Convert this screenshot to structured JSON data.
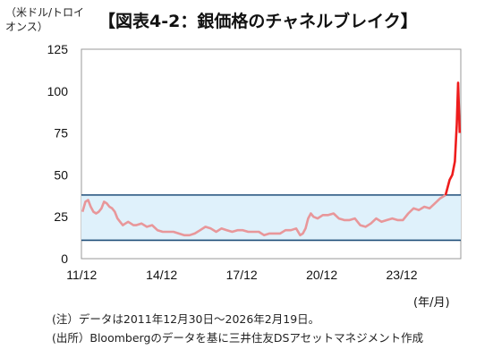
{
  "chart_data": {
    "type": "line",
    "title": "【図表4-2：銀価格のチャネルブレイク】",
    "ylabel": "（米ドル/トロイ\nオンス）",
    "xlabel": "(年/月)",
    "ylim": [
      0,
      125
    ],
    "y_ticks": [
      "0",
      "25",
      "50",
      "75",
      "100",
      "125"
    ],
    "x_ticks": [
      "11/12",
      "14/12",
      "17/12",
      "20/12",
      "23/12"
    ],
    "grid": false,
    "channel": {
      "lower": 11,
      "upper": 38
    },
    "series": [
      {
        "color_before": "#e8979a",
        "color_after": "#ee1c1c",
        "x": [
          2011.99,
          2012.1,
          2012.2,
          2012.3,
          2012.4,
          2012.5,
          2012.6,
          2012.7,
          2012.8,
          2012.9,
          2013.0,
          2013.1,
          2013.2,
          2013.3,
          2013.4,
          2013.5,
          2013.6,
          2013.7,
          2013.8,
          2013.9,
          2014.0,
          2014.2,
          2014.4,
          2014.6,
          2014.8,
          2015.0,
          2015.2,
          2015.4,
          2015.6,
          2015.8,
          2016.0,
          2016.2,
          2016.4,
          2016.6,
          2016.8,
          2017.0,
          2017.2,
          2017.4,
          2017.6,
          2017.8,
          2018.0,
          2018.2,
          2018.4,
          2018.6,
          2018.8,
          2019.0,
          2019.2,
          2019.4,
          2019.6,
          2019.8,
          2020.0,
          2020.15,
          2020.25,
          2020.35,
          2020.45,
          2020.55,
          2020.65,
          2020.8,
          2021.0,
          2021.2,
          2021.4,
          2021.6,
          2021.8,
          2022.0,
          2022.2,
          2022.4,
          2022.6,
          2022.8,
          2023.0,
          2023.2,
          2023.4,
          2023.6,
          2023.8,
          2024.0,
          2024.2,
          2024.4,
          2024.6,
          2024.8,
          2025.0,
          2025.2,
          2025.4,
          2025.6,
          2025.75,
          2025.85,
          2025.95,
          2026.02,
          2026.07,
          2026.1,
          2026.13
        ],
        "values": [
          28,
          34,
          35,
          31,
          28,
          27,
          28,
          30,
          34,
          33,
          31,
          30,
          28,
          24,
          22,
          20,
          21,
          22,
          21,
          20,
          20,
          21,
          19,
          20,
          17,
          16,
          16,
          16,
          15,
          14,
          14,
          15,
          17,
          19,
          18,
          16,
          18,
          17,
          16,
          17,
          17,
          16,
          16,
          16,
          14,
          15,
          15,
          15,
          17,
          17,
          18,
          14,
          15,
          18,
          24,
          27,
          25,
          24,
          26,
          26,
          27,
          24,
          23,
          23,
          24,
          20,
          19,
          21,
          24,
          22,
          23,
          24,
          23,
          23,
          27,
          30,
          29,
          31,
          30,
          33,
          36,
          38,
          47,
          50,
          58,
          80,
          105,
          90,
          75
        ]
      }
    ]
  },
  "notes": [
    "(注）データは2011年12月30日～2026年2月19日。",
    "(出所）Bloombergのデータを基に三井住友DSアセットマネジメント作成"
  ],
  "colors": {
    "channel_fill": "#dff1fb",
    "channel_line": "#1f4e79",
    "axis": "#333333"
  }
}
